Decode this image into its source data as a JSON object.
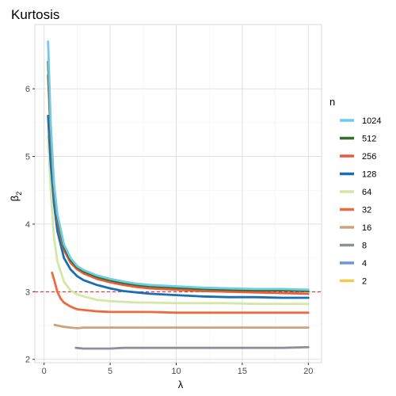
{
  "chart_data": {
    "type": "line",
    "title": "Kurtosis",
    "xlabel": "λ",
    "ylabel": "β",
    "ylabel_sub": "2",
    "xlim": [
      -0.7,
      21
    ],
    "ylim": [
      1.95,
      6.95
    ],
    "x_ticks": [
      0,
      5,
      10,
      15,
      20
    ],
    "y_ticks": [
      2,
      3,
      4,
      5,
      6
    ],
    "grid": true,
    "reference_line": {
      "y": 3,
      "color": "#e41a1c",
      "style": "dashed"
    },
    "legend": {
      "title": "n",
      "placement": "right"
    },
    "series": [
      {
        "name": "1024",
        "color": "#6ecbea",
        "x": [
          0.3,
          0.5,
          0.75,
          1,
          1.5,
          2,
          2.5,
          3,
          4,
          5,
          6,
          7,
          8,
          10,
          12,
          14,
          16,
          18,
          20
        ],
        "y": [
          6.7,
          5.5,
          4.6,
          4.15,
          3.7,
          3.5,
          3.38,
          3.32,
          3.24,
          3.19,
          3.15,
          3.12,
          3.1,
          3.08,
          3.06,
          3.05,
          3.04,
          3.04,
          3.03
        ]
      },
      {
        "name": "512",
        "color": "#356e2a",
        "x": [
          0.3,
          0.5,
          0.75,
          1,
          1.5,
          2,
          2.5,
          3,
          4,
          5,
          6,
          7,
          8,
          10,
          12,
          14,
          16,
          18,
          20
        ],
        "y": [
          6.4,
          5.4,
          4.55,
          4.1,
          3.66,
          3.47,
          3.36,
          3.3,
          3.22,
          3.17,
          3.13,
          3.1,
          3.08,
          3.06,
          3.04,
          3.03,
          3.02,
          3.02,
          3.01
        ]
      },
      {
        "name": "256",
        "color": "#ec5a3a",
        "x": [
          0.3,
          0.5,
          0.75,
          1,
          1.5,
          2,
          2.5,
          3,
          4,
          5,
          6,
          7,
          8,
          10,
          12,
          14,
          16,
          18,
          20
        ],
        "y": [
          6.2,
          5.3,
          4.5,
          4.05,
          3.62,
          3.43,
          3.33,
          3.27,
          3.19,
          3.14,
          3.1,
          3.07,
          3.05,
          3.03,
          3.01,
          3.0,
          2.99,
          2.98,
          2.97
        ]
      },
      {
        "name": "128",
        "color": "#1a6eb3",
        "x": [
          0.3,
          0.5,
          0.75,
          1,
          1.5,
          2,
          2.5,
          3,
          4,
          5,
          6,
          7,
          8,
          10,
          12,
          14,
          16,
          18,
          20
        ],
        "y": [
          5.6,
          4.9,
          4.3,
          3.9,
          3.5,
          3.33,
          3.23,
          3.17,
          3.1,
          3.05,
          3.01,
          2.99,
          2.97,
          2.95,
          2.93,
          2.92,
          2.92,
          2.91,
          2.91
        ]
      },
      {
        "name": "64",
        "color": "#d4e6a8",
        "x": [
          0.3,
          0.5,
          0.75,
          1,
          1.5,
          2,
          2.5,
          3,
          4,
          5,
          6,
          7,
          8,
          10,
          12,
          14,
          16,
          18,
          20
        ],
        "y": [
          5.3,
          4.5,
          3.8,
          3.45,
          3.15,
          3.02,
          2.96,
          2.93,
          2.88,
          2.86,
          2.85,
          2.84,
          2.84,
          2.83,
          2.83,
          2.83,
          2.82,
          2.82,
          2.82
        ]
      },
      {
        "name": "32",
        "color": "#ec6a3e",
        "x": [
          0.6,
          0.8,
          1,
          1.25,
          1.5,
          2,
          2.5,
          3,
          4,
          5,
          6,
          8,
          10,
          12,
          14,
          16,
          18,
          20
        ],
        "y": [
          3.28,
          3.15,
          3.0,
          2.9,
          2.84,
          2.78,
          2.74,
          2.73,
          2.71,
          2.7,
          2.7,
          2.7,
          2.69,
          2.69,
          2.69,
          2.69,
          2.69,
          2.69
        ]
      },
      {
        "name": "16",
        "color": "#cfa27a",
        "x": [
          0.8,
          1,
          1.25,
          1.5,
          2,
          2.5,
          3,
          4,
          5,
          6,
          8,
          10,
          12,
          14,
          16,
          18,
          20
        ],
        "y": [
          2.51,
          2.5,
          2.49,
          2.48,
          2.47,
          2.46,
          2.47,
          2.47,
          2.47,
          2.47,
          2.47,
          2.47,
          2.47,
          2.47,
          2.47,
          2.47,
          2.47
        ]
      },
      {
        "name": "8",
        "color": "#8d9095",
        "x": [
          2.4,
          3,
          4,
          5,
          6,
          8,
          10,
          12,
          14,
          16,
          18,
          20
        ],
        "y": [
          2.17,
          2.16,
          2.16,
          2.16,
          2.17,
          2.17,
          2.17,
          2.17,
          2.17,
          2.17,
          2.17,
          2.18
        ]
      },
      {
        "name": "4",
        "color": "#6b95d6",
        "x": [],
        "y": []
      },
      {
        "name": "2",
        "color": "#f7c948",
        "x": [],
        "y": []
      }
    ]
  }
}
